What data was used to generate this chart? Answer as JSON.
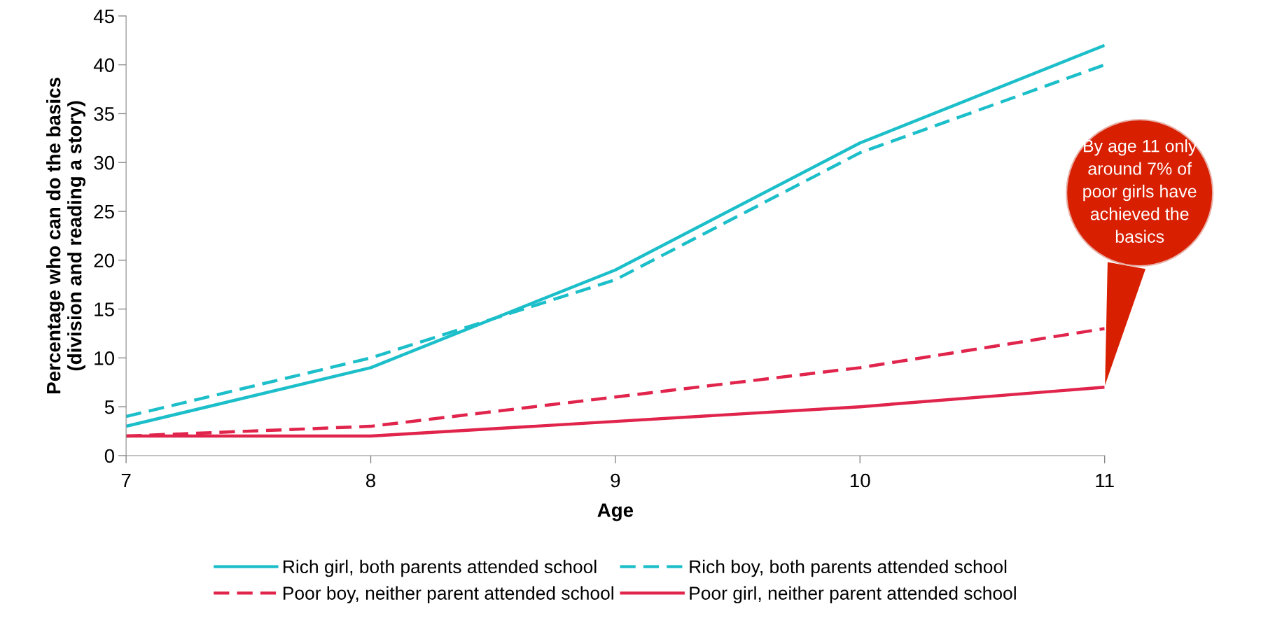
{
  "chart_data": {
    "type": "line",
    "xlabel": "Age",
    "ylabel": "Percentage who can do the basics\n(division and reading a story)",
    "x": [
      7,
      8,
      9,
      10,
      11
    ],
    "xlim": [
      7,
      11
    ],
    "xticks": [
      7,
      8,
      9,
      10,
      11
    ],
    "ylim": [
      0,
      45
    ],
    "yticks": [
      0,
      5,
      10,
      15,
      20,
      25,
      30,
      35,
      40,
      45
    ],
    "grid": false,
    "legend": "bottom",
    "marker": "none",
    "series": [
      {
        "name": "Rich girl, both parents attended school",
        "color": "#1cbfc9",
        "line_style": "solid",
        "values": [
          3,
          9,
          19,
          32,
          42
        ]
      },
      {
        "name": "Rich boy, both parents attended school",
        "color": "#1cbfc9",
        "line_style": "dashed",
        "values": [
          4,
          10,
          18,
          31,
          40
        ]
      },
      {
        "name": "Poor boy, neither parent attended school",
        "color": "#e0244b",
        "line_style": "dashed",
        "values": [
          2,
          3,
          6,
          9,
          13
        ]
      },
      {
        "name": "Poor girl, neither parent attended school",
        "color": "#e0244b",
        "line_style": "solid",
        "values": [
          2,
          2,
          3.5,
          5,
          7
        ]
      }
    ],
    "annotations": [
      {
        "text": "By age 11 only\naround 7% of\npoor girls have\nachieved the\nbasics",
        "x": 11,
        "y": 7
      }
    ]
  }
}
